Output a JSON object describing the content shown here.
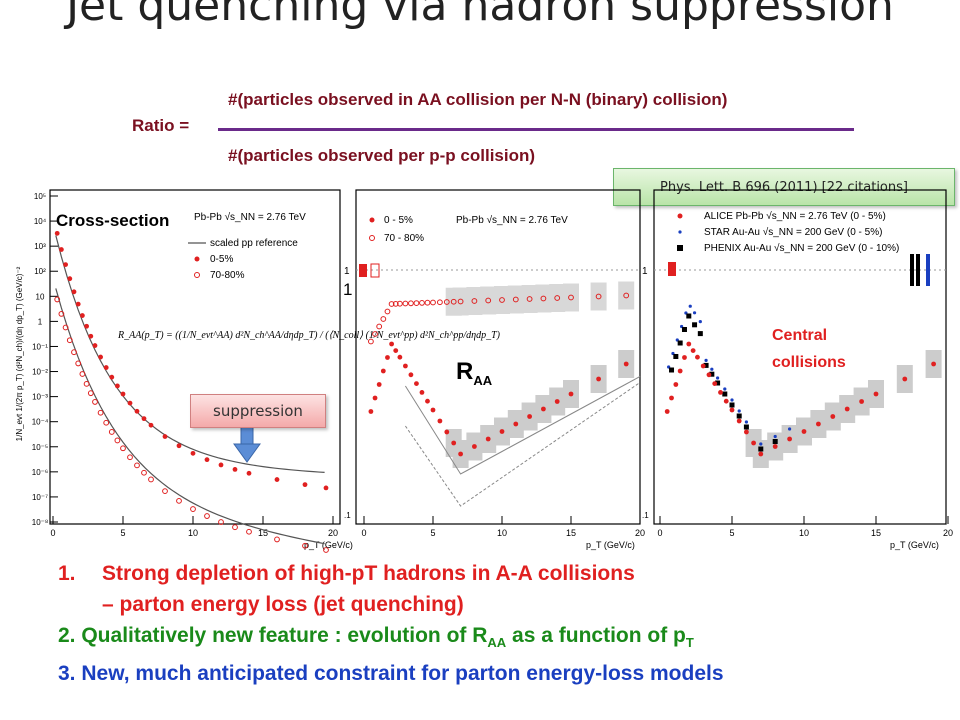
{
  "slide": {
    "title": "Jet quenching via hadron suppression",
    "ratio_label": "Ratio =",
    "numerator": "#(particles observed in AA collision per N-N (binary) collision)",
    "denominator": "#(particles observed per p-p collision)",
    "citation": "Phys. Lett. B 696 (2011) [22 citations]",
    "suppression_label": "suppression",
    "cross_section_label": "Cross-section",
    "raa_label": "R",
    "raa_sub": "AA",
    "central_label_1": "Central",
    "central_label_2": "collisions",
    "stray_one": "1",
    "bullets": [
      {
        "num": "1.",
        "text": "Strong depletion of high-pT hadrons in A-A collisions"
      },
      {
        "text": "– parton energy loss (jet quenching)"
      },
      {
        "pre": "2. Qualitatively new feature : evolution of R",
        "sub1": "AA",
        "mid": " as a function of p",
        "sub2": "T"
      },
      {
        "text": "3. New, much anticipated constraint for parton energy-loss models"
      }
    ]
  },
  "plots": {
    "left": {
      "ylabel": "1/N_evt 1/(2π p_T) (d²N_ch)/(dη dp_T) (GeV/c)⁻²",
      "xlabel": "p_T (GeV/c)",
      "legend": [
        "Pb-Pb √s_NN = 2.76 TeV",
        "scaled pp reference",
        "0-5%",
        "70-80%"
      ],
      "formula": "R_AA(p_T) = ((1/N_evt^AA) d²N_ch^AA/dηdp_T) / (⟨N_coll⟩ (1/N_evt^pp) d²N_ch^pp/dηdp_T)",
      "yticks": [
        "10⁵",
        "10⁴",
        "10³",
        "10²",
        "10",
        "1",
        "10⁻¹",
        "10⁻²",
        "10⁻³",
        "10⁻⁴",
        "10⁻⁵",
        "10⁻⁶",
        "10⁻⁷",
        "10⁻⁸"
      ],
      "xticks": [
        "0",
        "5",
        "10",
        "15",
        "20"
      ]
    },
    "middle": {
      "legend": [
        "0 - 5%",
        "70 - 80%",
        "Pb-Pb √s_NN = 2.76 TeV"
      ],
      "ytick_top": "1",
      "ytick_bottom": ".1",
      "xticks": [
        "0",
        "5",
        "10",
        "15",
        "20"
      ],
      "xlabel": "p_T (GeV/c)"
    },
    "right": {
      "legend": [
        "ALICE Pb-Pb √s_NN = 2.76 TeV (0 - 5%)",
        "STAR Au-Au √s_NN = 200 GeV (0 - 5%)",
        "PHENIX Au-Au √s_NN = 200 GeV (0 - 10%)"
      ],
      "ytick_top": "1",
      "ytick_bottom": ".1",
      "xticks": [
        "0",
        "5",
        "10",
        "15",
        "20"
      ],
      "xlabel": "p_T (GeV/c)"
    }
  },
  "colors": {
    "title": "#222222",
    "formula_text": "#7a1020",
    "fraction_bar": "#6a2a8a",
    "bullet1": "#e02020",
    "bullet2": "#1a8a1a",
    "bullet3": "#1a3fc0",
    "alice": "#e02020",
    "star": "#1a3fc0",
    "phenix": "#000000"
  }
}
